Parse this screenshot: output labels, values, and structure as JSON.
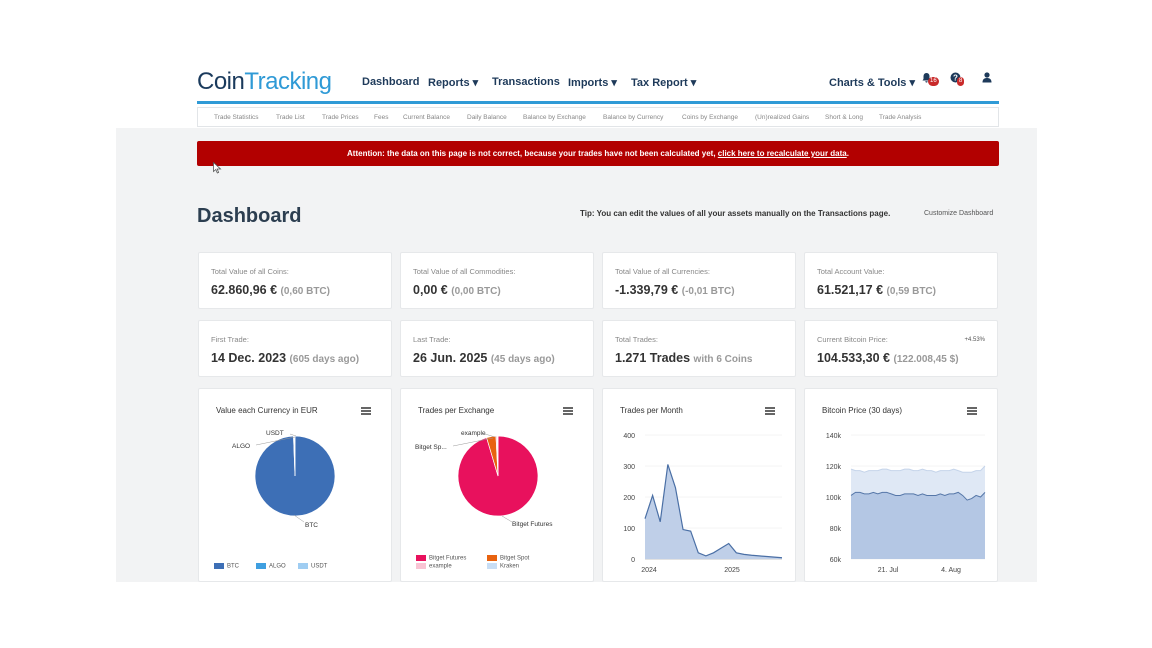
{
  "logo": {
    "part1": "Coin",
    "part2": "Tracking"
  },
  "nav": {
    "dashboard": "Dashboard",
    "reports": "Reports ▾",
    "transactions": "Transactions",
    "imports": "Imports ▾",
    "tax_report": "Tax Report ▾",
    "charts_tools": "Charts & Tools ▾",
    "notif_count": "16",
    "help_count": "8"
  },
  "subnav": [
    "Trade Statistics",
    "Trade List",
    "Trade Prices",
    "Fees",
    "Current Balance",
    "Daily Balance",
    "Balance by Exchange",
    "Balance by Currency",
    "Coins by Exchange",
    "(Un)realized Gains",
    "Short & Long",
    "Trade Analysis"
  ],
  "alert": {
    "text": "Attention: the data on this page is not correct, because your trades have not been calculated yet, ",
    "link": "click here to recalculate your data",
    "end": "."
  },
  "page": {
    "title": "Dashboard",
    "tip": "Tip: You can edit the values of all your assets manually on the Transactions page.",
    "customize": "Customize Dashboard"
  },
  "stats": [
    {
      "label": "Total Value of all Coins:",
      "value": "62.860,96 €",
      "sub": "(0,60 BTC)"
    },
    {
      "label": "Total Value of all Commodities:",
      "value": "0,00 €",
      "sub": "(0,00 BTC)"
    },
    {
      "label": "Total Value of all Currencies:",
      "value": "-1.339,79 €",
      "sub": "(-0,01 BTC)"
    },
    {
      "label": "Total Account Value:",
      "value": "61.521,17 €",
      "sub": "(0,59 BTC)"
    },
    {
      "label": "First Trade:",
      "value": "14 Dec. 2023",
      "sub": "(605 days ago)"
    },
    {
      "label": "Last Trade:",
      "value": "26 Jun. 2025",
      "sub": "(45 days ago)"
    },
    {
      "label": "Total Trades:",
      "value": "1.271 Trades",
      "sub": "with 6 Coins"
    },
    {
      "label": "Current Bitcoin Price:",
      "value": "104.533,30 €",
      "sub": "(122.008,45 $)",
      "change": "+4.53%"
    }
  ],
  "charts": {
    "currency": {
      "title": "Value each Currency in EUR",
      "labels": [
        "USDT",
        "ALGO",
        "BTC"
      ],
      "legend": [
        "BTC",
        "ALGO",
        "USDT"
      ]
    },
    "exchange": {
      "title": "Trades per Exchange",
      "labels": [
        "example",
        "Bitget Sp...",
        "Bitget Futures"
      ],
      "legend": [
        "Bitget Futures",
        "Bitget Spot",
        "example",
        "Kraken"
      ]
    },
    "month": {
      "title": "Trades per Month",
      "yticks": [
        "400",
        "300",
        "200",
        "100",
        "0"
      ],
      "xticks": [
        "2024",
        "2025"
      ]
    },
    "btc": {
      "title": "Bitcoin Price (30 days)",
      "yticks": [
        "140k",
        "120k",
        "100k",
        "80k",
        "60k"
      ],
      "xticks": [
        "21. Jul",
        "4. Aug"
      ]
    }
  },
  "colors": {
    "accent": "#2f9ad6",
    "alert": "#b20000",
    "btc": "#3d6fb6",
    "futures": "#e8115d",
    "spot": "#e8620f"
  },
  "chart_data": [
    {
      "type": "pie",
      "title": "Value each Currency in EUR",
      "categories": [
        "BTC",
        "ALGO",
        "USDT"
      ],
      "values": [
        99.4,
        0.3,
        0.3
      ]
    },
    {
      "type": "pie",
      "title": "Trades per Exchange",
      "categories": [
        "Bitget Futures",
        "Bitget Spot",
        "example",
        "Kraken"
      ],
      "values": [
        95.4,
        3.8,
        0.6,
        0.2
      ]
    },
    {
      "type": "area",
      "title": "Trades per Month",
      "x": [
        "2023-12",
        "2024-01",
        "2024-02",
        "2024-03",
        "2024-04",
        "2024-05",
        "2024-06",
        "2024-07",
        "2024-08",
        "2024-09",
        "2024-10",
        "2024-11",
        "2024-12",
        "2025-01",
        "2025-02",
        "2025-03",
        "2025-04",
        "2025-05",
        "2025-06"
      ],
      "values": [
        130,
        205,
        120,
        305,
        230,
        95,
        90,
        20,
        10,
        20,
        35,
        50,
        20,
        15,
        12,
        10,
        8,
        6,
        4
      ],
      "ylim": [
        0,
        400
      ],
      "xticks": [
        "2024",
        "2025"
      ]
    },
    {
      "type": "area",
      "title": "Bitcoin Price (30 days)",
      "series": [
        {
          "values": [
            101,
            103,
            103,
            102,
            102,
            103,
            102,
            103,
            103,
            102,
            101,
            101,
            102,
            102,
            102,
            101,
            102,
            101,
            101,
            101,
            102,
            101,
            102,
            102,
            103,
            101,
            98,
            99,
            101,
            100,
            103
          ]
        },
        {
          "values": [
            118,
            117,
            117,
            116,
            117,
            117,
            117,
            118,
            118,
            117,
            117,
            117,
            118,
            118,
            117,
            117,
            118,
            117,
            117,
            116,
            117,
            117,
            117,
            118,
            117,
            116,
            116,
            116,
            117,
            117,
            120
          ]
        }
      ],
      "ylim": [
        60,
        140
      ],
      "xticks": [
        "21. Jul",
        "4. Aug"
      ]
    }
  ]
}
